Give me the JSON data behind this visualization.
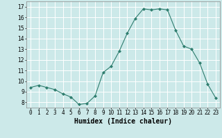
{
  "x": [
    0,
    1,
    2,
    3,
    4,
    5,
    6,
    7,
    8,
    9,
    10,
    11,
    12,
    13,
    14,
    15,
    16,
    17,
    18,
    19,
    20,
    21,
    22,
    23
  ],
  "y": [
    9.4,
    9.6,
    9.4,
    9.2,
    8.8,
    8.5,
    7.8,
    7.9,
    8.6,
    10.8,
    11.4,
    12.8,
    14.5,
    15.9,
    16.8,
    16.7,
    16.8,
    16.7,
    14.8,
    13.3,
    13.0,
    11.7,
    9.7,
    8.4
  ],
  "line_color": "#2e7d6e",
  "marker": "D",
  "marker_size": 2.0,
  "bg_color": "#cce9e9",
  "grid_color": "#ffffff",
  "xlabel": "Humidex (Indice chaleur)",
  "ylim": [
    7.5,
    17.5
  ],
  "xlim": [
    -0.5,
    23.5
  ],
  "yticks": [
    8,
    9,
    10,
    11,
    12,
    13,
    14,
    15,
    16,
    17
  ],
  "xtick_labels": [
    "0",
    "1",
    "2",
    "3",
    "4",
    "5",
    "6",
    "7",
    "8",
    "9",
    "10",
    "11",
    "12",
    "13",
    "14",
    "15",
    "16",
    "17",
    "18",
    "19",
    "20",
    "21",
    "22",
    "23"
  ],
  "tick_fontsize": 5.5,
  "xlabel_fontsize": 7,
  "label_color": "#000000",
  "spine_color": "#888888"
}
